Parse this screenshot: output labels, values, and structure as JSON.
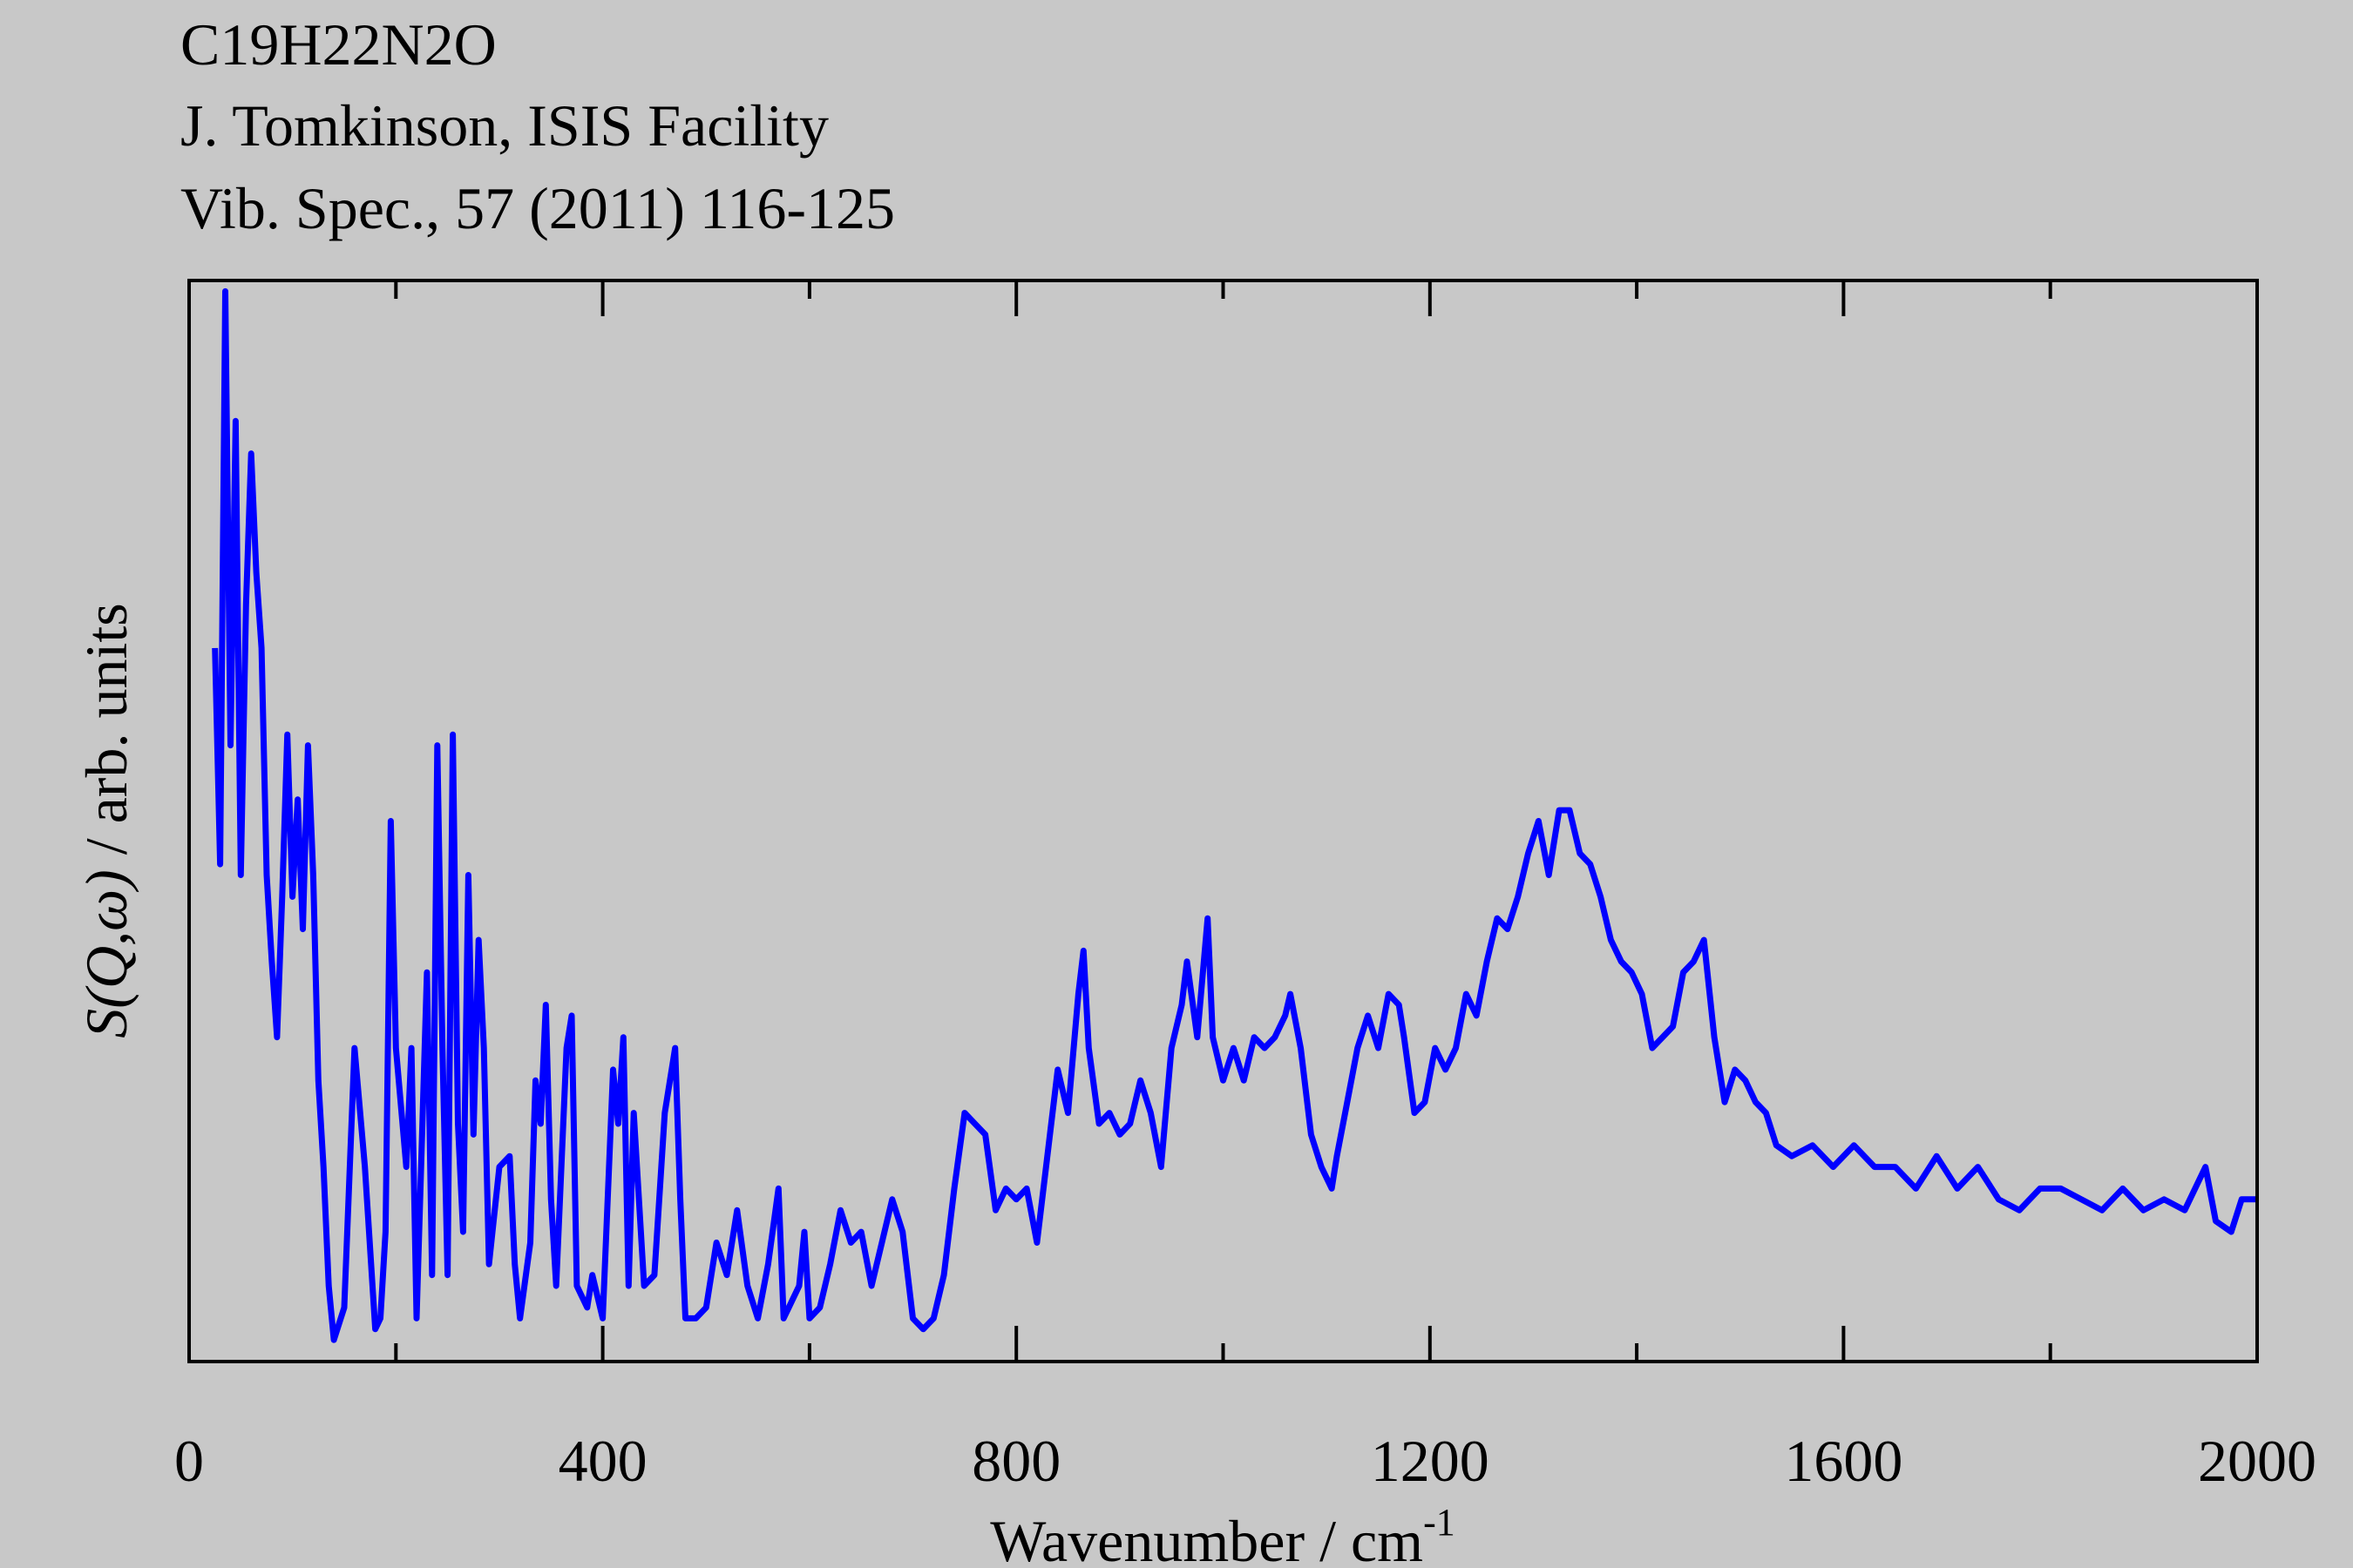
{
  "chart_data": {
    "type": "line",
    "title": "C19H22N2O",
    "subtitle": [
      "J. Tomkinson, ISIS Facility",
      "Vib. Spec., 57 (2011) 116-125"
    ],
    "xlabel": "Wavenumber / cm",
    "xlabel_superscript": "-1",
    "ylabel_symbol": "S(Q,ω)",
    "ylabel": " / arb. units",
    "color": "#0000ff",
    "xlim": [
      0,
      2000
    ],
    "xticks": [
      0,
      400,
      800,
      1200,
      1600,
      2000
    ],
    "xminor_ticks": [
      200,
      600,
      1000,
      1400,
      1800
    ],
    "ylim": [
      0,
      100
    ],
    "x": [
      25,
      30,
      35,
      40,
      45,
      50,
      55,
      60,
      65,
      70,
      75,
      80,
      85,
      90,
      95,
      100,
      105,
      110,
      115,
      120,
      125,
      130,
      135,
      140,
      150,
      160,
      170,
      180,
      185,
      190,
      195,
      200,
      210,
      215,
      220,
      230,
      235,
      240,
      245,
      250,
      255,
      260,
      265,
      270,
      275,
      280,
      285,
      290,
      300,
      310,
      315,
      320,
      330,
      335,
      340,
      345,
      350,
      355,
      365,
      370,
      375,
      385,
      390,
      400,
      410,
      415,
      420,
      425,
      430,
      440,
      450,
      460,
      470,
      475,
      480,
      490,
      500,
      510,
      520,
      530,
      540,
      550,
      560,
      570,
      575,
      590,
      595,
      600,
      610,
      620,
      630,
      640,
      650,
      660,
      680,
      690,
      700,
      710,
      720,
      730,
      740,
      750,
      760,
      770,
      780,
      790,
      800,
      810,
      820,
      830,
      840,
      850,
      860,
      865,
      870,
      880,
      890,
      900,
      910,
      920,
      930,
      940,
      950,
      960,
      965,
      975,
      985,
      990,
      1000,
      1010,
      1020,
      1030,
      1040,
      1050,
      1060,
      1065,
      1075,
      1085,
      1095,
      1105,
      1110,
      1120,
      1130,
      1140,
      1150,
      1160,
      1170,
      1175,
      1185,
      1195,
      1205,
      1215,
      1225,
      1235,
      1245,
      1255,
      1265,
      1275,
      1285,
      1295,
      1305,
      1315,
      1325,
      1335,
      1345,
      1355,
      1365,
      1375,
      1385,
      1395,
      1405,
      1415,
      1425,
      1435,
      1445,
      1455,
      1465,
      1475,
      1485,
      1495,
      1505,
      1515,
      1525,
      1535,
      1550,
      1570,
      1590,
      1610,
      1630,
      1650,
      1670,
      1690,
      1710,
      1730,
      1750,
      1770,
      1790,
      1810,
      1830,
      1850,
      1870,
      1890,
      1910,
      1930,
      1950,
      1960,
      1975,
      1985,
      2000
    ],
    "values": [
      66,
      46,
      99,
      57,
      87,
      45,
      70,
      84,
      73,
      66,
      45,
      37,
      30,
      43,
      58,
      43,
      52,
      40,
      57,
      45,
      26,
      18,
      7,
      2,
      5,
      29,
      18,
      3,
      4,
      12,
      50,
      29,
      18,
      29,
      4,
      36,
      8,
      57,
      29,
      8,
      58,
      22,
      12,
      45,
      21,
      39,
      29,
      9,
      18,
      19,
      9,
      4,
      11,
      26,
      22,
      33,
      15,
      7,
      29,
      32,
      7,
      5,
      8,
      4,
      27,
      22,
      30,
      7,
      23,
      7,
      8,
      23,
      29,
      15,
      4,
      4,
      5,
      11,
      8,
      14,
      7,
      4,
      9,
      16,
      4,
      7,
      12,
      4,
      5,
      9,
      14,
      11,
      12,
      7,
      15,
      12,
      4,
      3,
      4,
      8,
      16,
      23,
      22,
      21,
      14,
      16,
      15,
      16,
      11,
      19,
      27,
      23,
      34,
      38,
      29,
      22,
      23,
      21,
      22,
      26,
      23,
      18,
      29,
      33,
      37,
      30,
      41,
      30,
      26,
      29,
      26,
      30,
      29,
      30,
      32,
      34,
      29,
      21,
      18,
      16,
      19,
      24,
      29,
      32,
      29,
      34,
      33,
      30,
      23,
      24,
      29,
      27,
      29,
      34,
      32,
      37,
      41,
      40,
      43,
      47,
      50,
      45,
      51,
      51,
      47,
      46,
      43,
      39,
      37,
      36,
      34,
      29,
      30,
      31,
      36,
      37,
      39,
      30,
      24,
      27,
      26,
      24,
      23,
      20,
      19,
      20,
      18,
      20,
      18,
      18,
      16,
      19,
      16,
      18,
      15,
      14,
      16,
      16,
      15,
      14,
      16,
      14,
      15,
      14,
      18,
      13,
      12,
      15,
      15
    ]
  }
}
